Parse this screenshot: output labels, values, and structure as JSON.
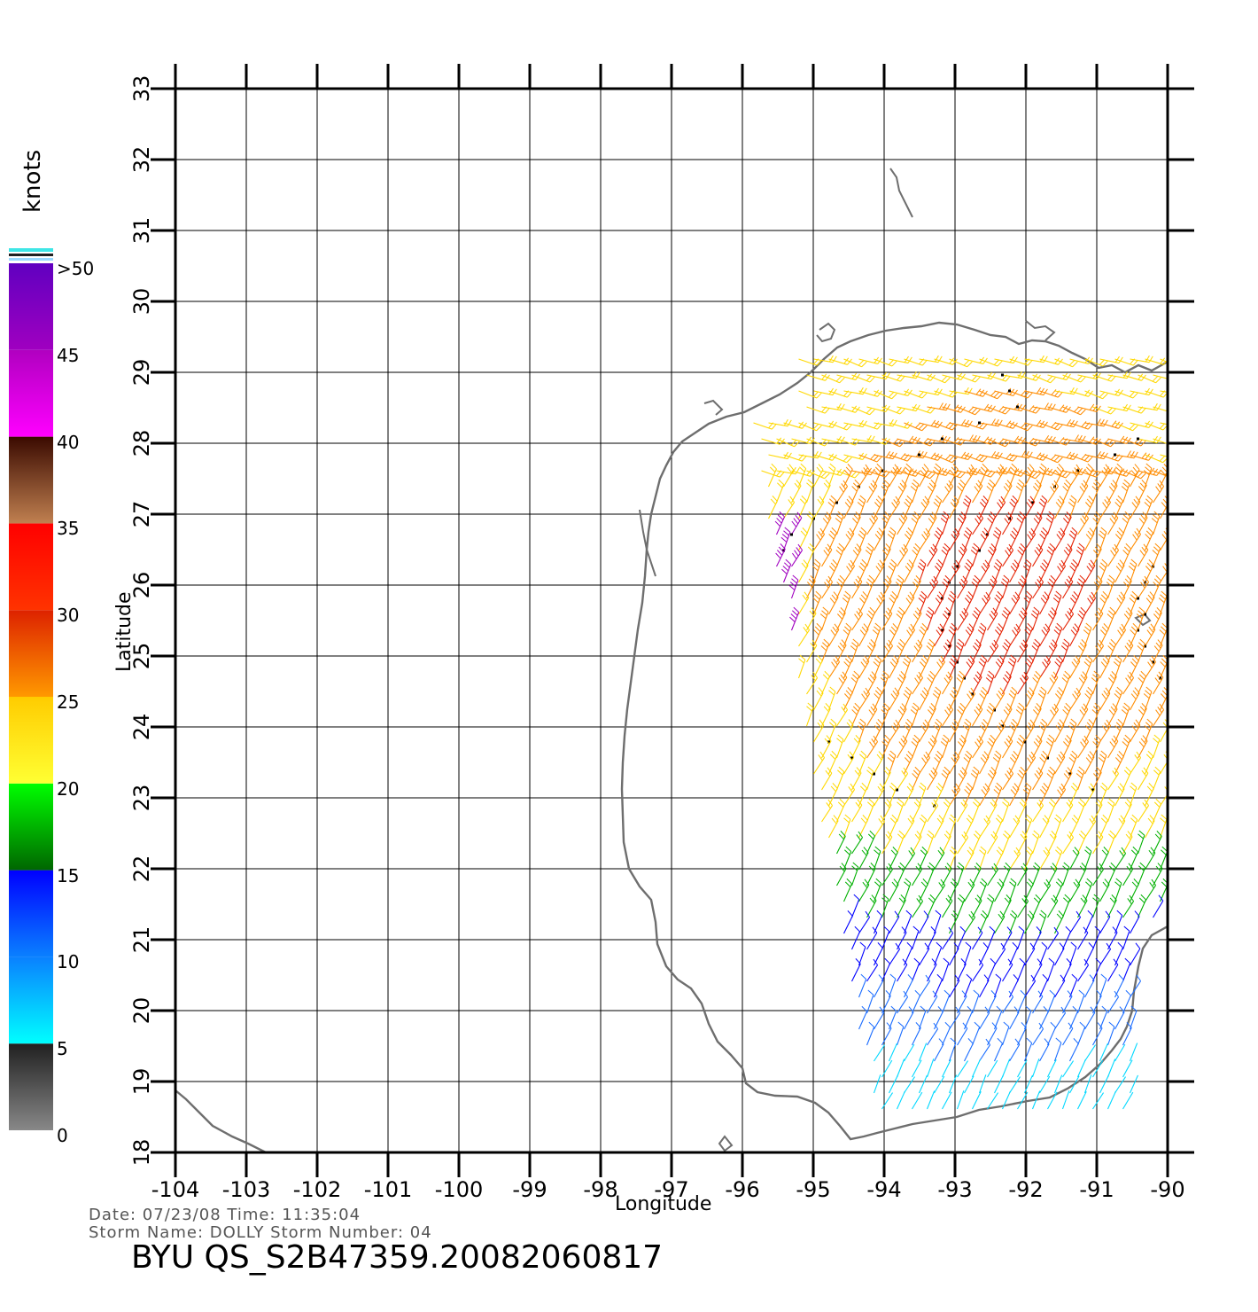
{
  "map": {
    "x_label": "Longitude",
    "y_label": "Latitude",
    "lon_ticks": [
      "-104",
      "-103",
      "-102",
      "-101",
      "-100",
      "-99",
      "-98",
      "-97",
      "-96",
      "-95",
      "-94",
      "-93",
      "-92",
      "-91",
      "-90"
    ],
    "lat_ticks": [
      "18",
      "19",
      "20",
      "21",
      "22",
      "23",
      "24",
      "25",
      "26",
      "27",
      "28",
      "29",
      "30",
      "31",
      "32",
      "33"
    ],
    "lon_range": [
      -104,
      -90
    ],
    "lat_range": [
      18,
      33
    ],
    "grid": true,
    "coast_color": "#6e6e6e"
  },
  "legend": {
    "title": "knots",
    "labels": [
      ">50",
      "45",
      "40",
      "35",
      "30",
      "25",
      "20",
      "15",
      "10",
      "5",
      "0"
    ],
    "bands": [
      {
        "from": 0,
        "to": 5,
        "colors": [
          "#888888",
          "#202020"
        ]
      },
      {
        "from": 5,
        "to": 10,
        "colors": [
          "#00ffff",
          "#0a80ff"
        ]
      },
      {
        "from": 10,
        "to": 15,
        "colors": [
          "#0a80ff",
          "#0000ff"
        ]
      },
      {
        "from": 15,
        "to": 20,
        "colors": [
          "#006600",
          "#00ff00"
        ]
      },
      {
        "from": 20,
        "to": 25,
        "colors": [
          "#ffff33",
          "#ffcc00"
        ]
      },
      {
        "from": 25,
        "to": 30,
        "colors": [
          "#ff9900",
          "#dd2200"
        ]
      },
      {
        "from": 30,
        "to": 35,
        "colors": [
          "#ff3300",
          "#ff0000"
        ]
      },
      {
        "from": 35,
        "to": 40,
        "colors": [
          "#c08050",
          "#3a0a00"
        ]
      },
      {
        "from": 40,
        "to": 45,
        "colors": [
          "#ff00ff",
          "#b000c0"
        ]
      },
      {
        "from": 45,
        "to": 50,
        "colors": [
          "#a000c0",
          "#6000c0"
        ]
      }
    ]
  },
  "info": {
    "date_time": "Date: 07/23/08   Time: 11:35:04",
    "storm": "Storm  Name: DOLLY    Storm  Number: 04",
    "title": "BYU  QS_S2B47359.20082060817"
  }
}
